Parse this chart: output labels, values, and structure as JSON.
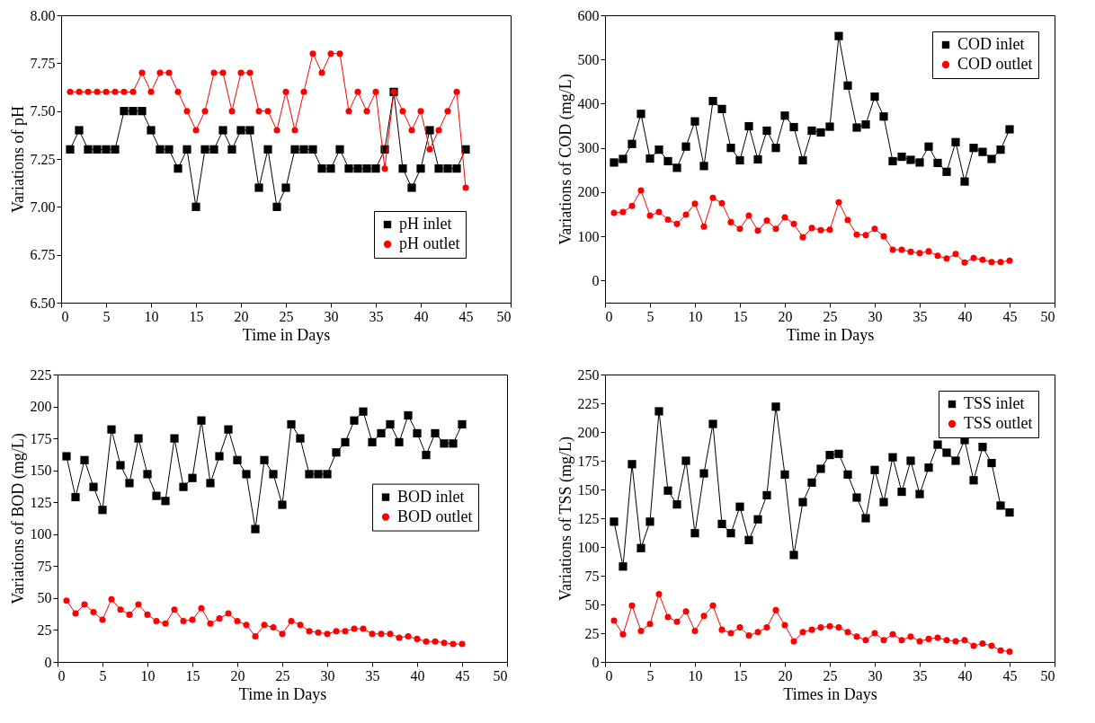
{
  "chart_data": [
    {
      "type": "line",
      "xlabel": "Time in Days",
      "ylabel": "Variations of pH",
      "x": [
        1,
        2,
        3,
        4,
        5,
        6,
        7,
        8,
        9,
        10,
        11,
        12,
        13,
        14,
        15,
        16,
        17,
        18,
        19,
        20,
        21,
        22,
        23,
        24,
        25,
        26,
        27,
        28,
        29,
        30,
        31,
        32,
        33,
        34,
        35,
        36,
        37,
        38,
        39,
        40,
        41,
        42,
        43,
        44,
        45
      ],
      "xlim": [
        0,
        50
      ],
      "xticks": [
        0,
        5,
        10,
        15,
        20,
        25,
        30,
        35,
        40,
        45,
        50
      ],
      "ylim": [
        6.5,
        8
      ],
      "yticks": [
        {
          "value": 6.5,
          "label": "6.50"
        },
        {
          "value": 6.75,
          "label": "6.75"
        },
        {
          "value": 7,
          "label": "7.00"
        },
        {
          "value": 7.25,
          "label": "7.25"
        },
        {
          "value": 7.5,
          "label": "7.50"
        },
        {
          "value": 7.75,
          "label": "7.75"
        },
        {
          "value": 8,
          "label": "8.00"
        }
      ],
      "legend": "bottom right",
      "series": [
        {
          "name": "pH inlet",
          "color": "#000000",
          "marker": "square",
          "values": [
            7.3,
            7.4,
            7.3,
            7.3,
            7.3,
            7.3,
            7.5,
            7.5,
            7.5,
            7.4,
            7.3,
            7.3,
            7.2,
            7.3,
            7.0,
            7.3,
            7.3,
            7.4,
            7.3,
            7.4,
            7.4,
            7.1,
            7.3,
            7.0,
            7.1,
            7.3,
            7.3,
            7.3,
            7.2,
            7.2,
            7.3,
            7.2,
            7.2,
            7.2,
            7.2,
            7.3,
            7.6,
            7.2,
            7.1,
            7.2,
            7.4,
            7.2,
            7.2,
            7.2,
            7.3
          ]
        },
        {
          "name": "pH outlet",
          "color": "#ff0000",
          "marker": "circle",
          "values": [
            7.6,
            7.6,
            7.6,
            7.6,
            7.6,
            7.6,
            7.6,
            7.6,
            7.7,
            7.6,
            7.7,
            7.7,
            7.6,
            7.5,
            7.4,
            7.5,
            7.7,
            7.7,
            7.5,
            7.7,
            7.7,
            7.5,
            7.5,
            7.4,
            7.6,
            7.4,
            7.6,
            7.8,
            7.7,
            7.8,
            7.8,
            7.5,
            7.6,
            7.5,
            7.6,
            7.2,
            7.6,
            7.5,
            7.4,
            7.5,
            7.3,
            7.4,
            7.5,
            7.6,
            7.1
          ]
        }
      ]
    },
    {
      "type": "line",
      "xlabel": "Time in Days",
      "ylabel": "Variations of COD (mg/L)",
      "x": [
        1,
        2,
        3,
        4,
        5,
        6,
        7,
        8,
        9,
        10,
        11,
        12,
        13,
        14,
        15,
        16,
        17,
        18,
        19,
        20,
        21,
        22,
        23,
        24,
        25,
        26,
        27,
        28,
        29,
        30,
        31,
        32,
        33,
        34,
        35,
        36,
        37,
        38,
        39,
        40,
        41,
        42,
        43,
        44,
        45
      ],
      "xlim": [
        0,
        50
      ],
      "xticks": [
        0,
        5,
        10,
        15,
        20,
        25,
        30,
        35,
        40,
        45,
        50
      ],
      "ylim": [
        -50,
        600
      ],
      "yticks": [
        0,
        100,
        200,
        300,
        400,
        500,
        600
      ],
      "legend": "top right",
      "series": [
        {
          "name": "COD inlet",
          "color": "#000000",
          "marker": "square",
          "values": [
            267,
            275,
            309,
            377,
            276,
            296,
            270,
            255,
            303,
            360,
            259,
            406,
            388,
            300,
            272,
            349,
            274,
            339,
            300,
            373,
            347,
            272,
            339,
            335,
            348,
            553,
            441,
            346,
            353,
            416,
            371,
            270,
            280,
            273,
            267,
            303,
            266,
            246,
            313,
            224,
            300,
            291,
            275,
            296,
            342
          ]
        },
        {
          "name": "COD outlet",
          "color": "#ff0000",
          "marker": "circle",
          "values": [
            153,
            155,
            169,
            204,
            147,
            155,
            138,
            128,
            149,
            174,
            122,
            187,
            175,
            132,
            117,
            147,
            113,
            136,
            117,
            143,
            128,
            98,
            119,
            114,
            115,
            177,
            137,
            104,
            103,
            117,
            100,
            70,
            70,
            65,
            62,
            66,
            56,
            50,
            60,
            41,
            51,
            47,
            42,
            42,
            45
          ]
        }
      ]
    },
    {
      "type": "line",
      "xlabel": "Time in Days",
      "ylabel": "Variations of BOD (mg/L)",
      "x": [
        1,
        2,
        3,
        4,
        5,
        6,
        7,
        8,
        9,
        10,
        11,
        12,
        13,
        14,
        15,
        16,
        17,
        18,
        19,
        20,
        21,
        22,
        23,
        24,
        25,
        26,
        27,
        28,
        29,
        30,
        31,
        32,
        33,
        34,
        35,
        36,
        37,
        38,
        39,
        40,
        41,
        42,
        43,
        44,
        45
      ],
      "xlim": [
        0,
        50
      ],
      "xticks": [
        0,
        5,
        10,
        15,
        20,
        25,
        30,
        35,
        40,
        45,
        50
      ],
      "ylim": [
        0,
        225
      ],
      "yticks": [
        0,
        25,
        50,
        75,
        100,
        125,
        150,
        175,
        200,
        225
      ],
      "legend": "right",
      "series": [
        {
          "name": "BOD inlet",
          "color": "#000000",
          "marker": "square",
          "values": [
            161,
            129,
            158,
            137,
            119,
            182,
            154,
            140,
            175,
            147,
            130,
            126,
            175,
            137,
            144,
            189,
            140,
            161,
            182,
            158,
            147,
            104,
            158,
            147,
            123,
            186,
            175,
            147,
            147,
            147,
            164,
            172,
            189,
            196,
            172,
            179,
            186,
            172,
            193,
            179,
            162,
            179,
            171,
            171,
            186
          ]
        },
        {
          "name": "BOD outlet",
          "color": "#ff0000",
          "marker": "circle",
          "values": [
            48,
            38,
            45,
            39,
            33,
            49,
            41,
            37,
            45,
            37,
            32,
            30,
            41,
            32,
            33,
            42,
            30,
            34,
            38,
            32,
            29,
            20,
            29,
            27,
            22,
            32,
            29,
            24,
            23,
            22,
            24,
            24,
            26,
            26,
            22,
            22,
            22,
            19,
            20,
            18,
            16,
            16,
            15,
            14,
            14
          ]
        }
      ]
    },
    {
      "type": "line",
      "xlabel": "Times in Days",
      "ylabel": "Variations of TSS (mg/L)",
      "x": [
        1,
        2,
        3,
        4,
        5,
        6,
        7,
        8,
        9,
        10,
        11,
        12,
        13,
        14,
        15,
        16,
        17,
        18,
        19,
        20,
        21,
        22,
        23,
        24,
        25,
        26,
        27,
        28,
        29,
        30,
        31,
        32,
        33,
        34,
        35,
        36,
        37,
        38,
        39,
        40,
        41,
        42,
        43,
        44,
        45
      ],
      "xlim": [
        0,
        50
      ],
      "xticks": [
        0,
        5,
        10,
        15,
        20,
        25,
        30,
        35,
        40,
        45,
        50
      ],
      "ylim": [
        0,
        250
      ],
      "yticks": [
        0,
        25,
        50,
        75,
        100,
        125,
        150,
        175,
        200,
        225,
        250
      ],
      "legend": "top right",
      "series": [
        {
          "name": "TSS inlet",
          "color": "#000000",
          "marker": "square",
          "values": [
            122,
            83,
            172,
            99,
            122,
            218,
            149,
            137,
            175,
            112,
            164,
            207,
            120,
            112,
            135,
            106,
            124,
            145,
            222,
            163,
            93,
            139,
            156,
            168,
            180,
            181,
            163,
            143,
            125,
            167,
            139,
            178,
            148,
            175,
            146,
            169,
            189,
            182,
            175,
            193,
            158,
            187,
            173,
            136,
            130
          ]
        },
        {
          "name": "TSS outlet",
          "color": "#ff0000",
          "marker": "circle",
          "values": [
            36,
            24,
            49,
            27,
            33,
            59,
            39,
            35,
            44,
            27,
            40,
            49,
            28,
            25,
            30,
            23,
            26,
            30,
            45,
            32,
            18,
            26,
            28,
            30,
            31,
            30,
            26,
            22,
            19,
            25,
            19,
            24,
            19,
            22,
            18,
            20,
            21,
            19,
            18,
            19,
            14,
            16,
            14,
            10,
            9
          ]
        }
      ]
    }
  ]
}
